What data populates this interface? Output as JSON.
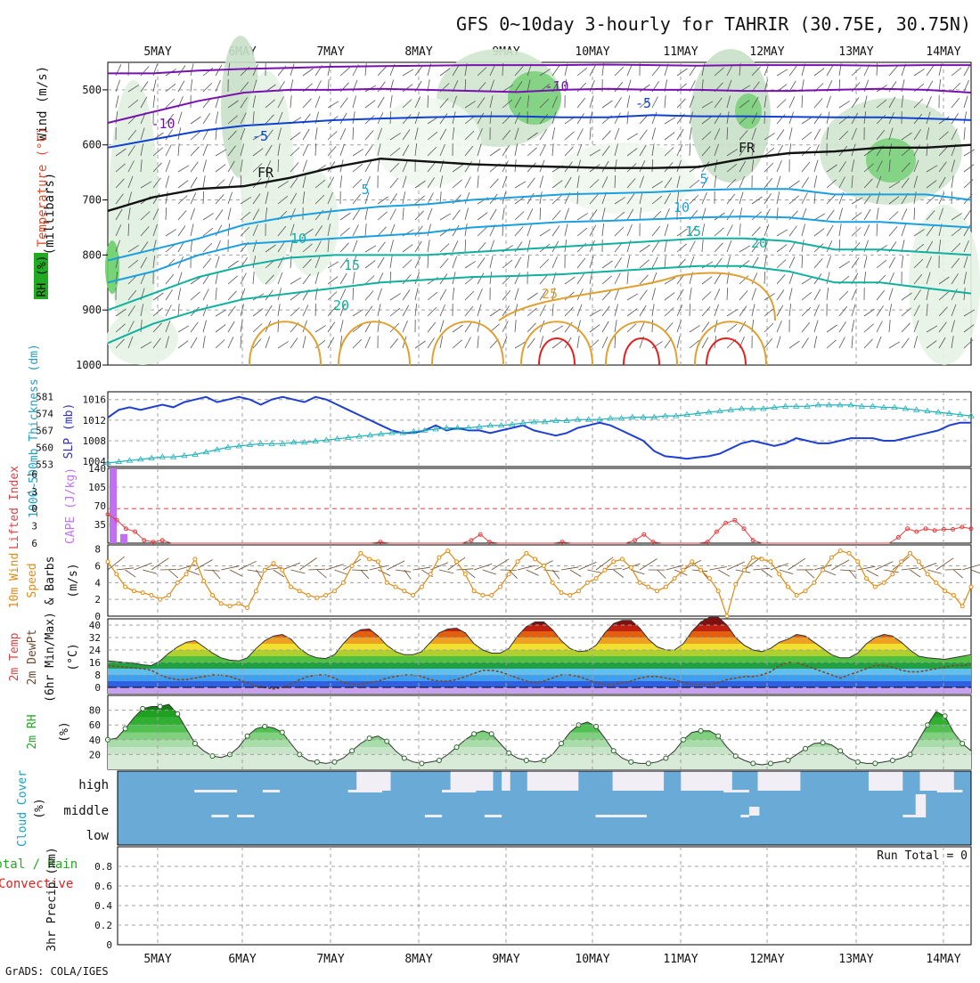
{
  "title": "GFS 0~10day 3-hourly for TAHRIR (30.75E, 30.75N)",
  "credit": "GrADS: COLA/IGES",
  "dates": [
    "5MAY",
    "6MAY",
    "7MAY",
    "8MAY",
    "9MAY",
    "10MAY",
    "11MAY",
    "12MAY",
    "13MAY",
    "14MAY"
  ],
  "colors": {
    "slp": "#1f3fd0",
    "thickness": "#20b0b8",
    "cape": "#c070f0",
    "li": "#e04040",
    "wind10": "#e08a10",
    "barb": "#6a4a2a",
    "rh": "#22aa22",
    "cloud": "#6aaad6",
    "cloud_gap": "#f2eef6",
    "t_purple": "#7a10b0",
    "t_blue": "#1040d0",
    "t_cyan": "#1aa0e0",
    "t_teal": "#10b0a0",
    "t_orange": "#e0a030",
    "t_red": "#e02020"
  },
  "panels": {
    "upper": {
      "y_label": "(millibars)",
      "leg_wind": "Wind (m/s)",
      "leg_temp": "Temperature (°C)",
      "leg_rh": "RH (%)",
      "ticks": [
        "500",
        "600",
        "700",
        "800",
        "900",
        "1000"
      ]
    },
    "slp": {
      "left_label": "1000~500mb Thickness (dm)",
      "right_label": "SLP (mb)",
      "thick_ticks": [
        "581",
        "574",
        "567",
        "560",
        "553"
      ],
      "slp_ticks": [
        "1016",
        "1012",
        "1008",
        "1004"
      ]
    },
    "cape": {
      "left_label": "Lifted Index",
      "right_label": "CAPE (J/kg)",
      "li_ticks": [
        "-6",
        "-3",
        "0",
        "3",
        "6"
      ],
      "cape_ticks": [
        "140",
        "105",
        "70",
        "35"
      ]
    },
    "wind": {
      "label1": "10m Wind",
      "label2": "Speed",
      "label3": "& Barbs",
      "unit": "(m/s)",
      "ticks": [
        "8",
        "6",
        "4",
        "2",
        "0"
      ]
    },
    "temp": {
      "label1": "2m Temp",
      "label2": "2m DewPt",
      "label3": "(6hr Min/Max)",
      "unit": "(°C)",
      "ticks": [
        "40",
        "32",
        "24",
        "16",
        "8",
        "0"
      ]
    },
    "rh": {
      "label": "2m RH",
      "unit": "(%)",
      "ticks": [
        "80",
        "60",
        "40",
        "20"
      ]
    },
    "cloud": {
      "label": "Cloud Cover",
      "unit": "(%)",
      "levels": [
        "high",
        "middle",
        "low"
      ]
    },
    "precip": {
      "label1": "Total / Rain",
      "label2": "Convective",
      "label3": "3hr Precip (mm)",
      "ticks": [
        "0.8",
        "0.6",
        "0.4",
        "0.2",
        "0"
      ],
      "run_total": "Run Total = 0"
    }
  },
  "chart_data": [
    {
      "type": "line",
      "name": "upper_air_isotherms",
      "title": "GFS 0~10day 3-hourly for TAHRIR (30.75E, 30.75N)",
      "ylabel": "(millibars)",
      "ylim": [
        1000,
        450
      ],
      "contour_labels": [
        "-10",
        "-10",
        "-5",
        "-5",
        "FR",
        "FR",
        "5",
        "5",
        "10",
        "10",
        "15",
        "15",
        "20",
        "20",
        "25"
      ],
      "isotherms": [
        {
          "label": "-10",
          "pressure": [
            470,
            470,
            465,
            462,
            460,
            458,
            457,
            456,
            455,
            455,
            455,
            454,
            455,
            456,
            455,
            455,
            455,
            456,
            455,
            455
          ]
        },
        {
          "label": "-10b",
          "pressure": [
            560,
            540,
            520,
            505,
            500,
            500,
            498,
            500,
            502,
            504,
            500,
            498,
            500,
            500,
            502,
            502,
            500,
            498,
            500,
            505
          ]
        },
        {
          "label": "-5",
          "pressure": [
            605,
            590,
            575,
            565,
            560,
            555,
            552,
            550,
            548,
            548,
            550,
            550,
            546,
            548,
            548,
            549,
            550,
            550,
            552,
            555
          ]
        },
        {
          "label": "FR",
          "pressure": [
            720,
            695,
            680,
            675,
            660,
            640,
            625,
            630,
            635,
            638,
            640,
            642,
            642,
            640,
            625,
            615,
            612,
            605,
            605,
            600
          ]
        },
        {
          "label": "5",
          "pressure": [
            810,
            790,
            770,
            745,
            730,
            720,
            712,
            708,
            700,
            695,
            690,
            688,
            686,
            682,
            680,
            680,
            690,
            690,
            690,
            700
          ]
        },
        {
          "label": "10",
          "pressure": [
            850,
            830,
            800,
            780,
            775,
            770,
            765,
            760,
            750,
            745,
            740,
            738,
            735,
            732,
            730,
            732,
            740,
            740,
            745,
            750
          ]
        },
        {
          "label": "15",
          "pressure": [
            900,
            870,
            840,
            820,
            805,
            800,
            800,
            800,
            795,
            790,
            785,
            780,
            775,
            770,
            770,
            775,
            790,
            790,
            795,
            800
          ]
        },
        {
          "label": "20",
          "pressure": [
            960,
            925,
            900,
            880,
            870,
            860,
            850,
            845,
            840,
            838,
            835,
            830,
            825,
            820,
            820,
            830,
            850,
            850,
            860,
            870
          ]
        }
      ]
    },
    {
      "type": "line",
      "name": "slp_thickness",
      "series": [
        {
          "name": "SLP (mb)",
          "values": [
            1012.5,
            1014,
            1014.5,
            1014,
            1014.5,
            1015,
            1014.5,
            1015.5,
            1016,
            1016.5,
            1015.5,
            1016,
            1016.5,
            1016,
            1015,
            1016,
            1016.5,
            1016,
            1015.5,
            1016.5,
            1016,
            1015,
            1014,
            1013,
            1012,
            1011,
            1010,
            1009.5,
            1009.5,
            1010,
            1011,
            1010,
            1010.5,
            1010,
            1010,
            1009.5,
            1010,
            1010.5,
            1011,
            1010,
            1009.5,
            1009,
            1009.5,
            1010.5,
            1011,
            1011.5,
            1011,
            1010,
            1009,
            1008,
            1006,
            1005,
            1004.8,
            1004.5,
            1004.8,
            1005,
            1005.5,
            1006.5,
            1007.5,
            1008,
            1007.5,
            1007,
            1007.5,
            1008.5,
            1008,
            1007.5,
            1007.5,
            1008,
            1008.5,
            1008.5,
            1008.5,
            1008,
            1008,
            1008.5,
            1009,
            1009.5,
            1010,
            1011,
            1011.5,
            1011.5
          ]
        },
        {
          "name": "1000~500mb Thickness (dm)",
          "values": [
            553.5,
            554,
            554.5,
            555,
            555.5,
            556,
            556,
            556.5,
            557,
            558,
            559,
            560,
            560.5,
            561,
            561.5,
            561.5,
            561.5,
            562,
            562,
            562.5,
            563,
            563.5,
            564,
            564.5,
            565,
            565.5,
            566,
            566,
            566.5,
            567,
            567.5,
            568,
            568,
            568,
            568.5,
            569,
            569,
            569.5,
            570,
            570.5,
            570.5,
            571,
            571,
            571.5,
            571.5,
            571.5,
            572,
            572,
            572.5,
            572.5,
            572.5,
            573,
            573,
            573.5,
            574,
            574.5,
            575,
            575.5,
            576,
            576,
            576,
            576.5,
            577,
            577,
            577,
            577.5,
            577.5,
            577.5,
            577.5,
            577,
            577,
            576.5,
            576.5,
            576,
            575.5,
            575,
            574.5,
            574,
            573.5,
            573
          ]
        }
      ]
    },
    {
      "type": "bar",
      "name": "cape_lifted_index",
      "series": [
        {
          "name": "CAPE (J/kg)",
          "values": [
            140,
            17
          ]
        },
        {
          "name": "Lifted Index",
          "values": [
            1,
            2,
            3.5,
            4,
            5.5,
            5.8,
            5.5,
            6,
            6,
            6,
            6,
            6,
            6,
            6,
            6,
            6,
            6,
            6,
            6,
            6,
            6,
            6,
            6,
            6,
            6,
            6,
            6,
            6,
            6,
            6,
            5.8,
            6,
            6,
            6,
            6,
            6,
            6,
            6,
            6,
            6,
            5.5,
            4.5,
            5.8,
            6,
            6,
            6,
            6,
            6,
            6,
            6,
            5.8,
            6,
            6,
            6,
            6,
            6,
            6,
            6,
            5.5,
            4.5,
            5.8,
            6,
            6,
            6,
            6,
            6,
            5.8,
            4,
            2.5,
            2,
            3.5,
            5.5,
            6,
            6,
            6,
            6,
            6,
            6,
            6,
            6,
            6,
            6,
            6,
            6,
            6,
            6,
            6,
            5,
            3.5,
            4,
            3.5,
            3.8,
            3.6,
            3.6,
            3.2,
            3.5
          ]
        }
      ],
      "ylim_li": [
        6,
        -6
      ],
      "ylim_cape": [
        0,
        140
      ]
    },
    {
      "type": "line",
      "name": "10m_wind_speed",
      "ylabel": "(m/s)",
      "ylim": [
        0,
        8
      ],
      "values": [
        6.5,
        5,
        3.5,
        3,
        2.8,
        2.5,
        2,
        2.5,
        4,
        5,
        6.8,
        4.2,
        2.5,
        1.5,
        1.2,
        1.5,
        1,
        3,
        5.5,
        6.3,
        5.5,
        3.5,
        3,
        2.5,
        2.2,
        2.5,
        3,
        4,
        6,
        7.5,
        6.8,
        6.5,
        4,
        3.5,
        3,
        2.5,
        3.5,
        5,
        7,
        7.8,
        6.5,
        5,
        3,
        2.5,
        2.5,
        3.5,
        5,
        6.5,
        7.5,
        6.8,
        6,
        4,
        2.8,
        2.5,
        3,
        4,
        4.5,
        5.5,
        6.5,
        6.8,
        5.8,
        4,
        3.5,
        3,
        3.5,
        4.5,
        5.5,
        6.5,
        5.5,
        4.5,
        3,
        0,
        3.8,
        5.5,
        7,
        6.8,
        6.5,
        5,
        3.5,
        2.5,
        3,
        4,
        5.5,
        7,
        7.8,
        7.5,
        6.5,
        4.5,
        3.5,
        4,
        5,
        6.5,
        7.5,
        6.5,
        5,
        4,
        3,
        2.5,
        1.2,
        3.5
      ]
    },
    {
      "type": "area",
      "name": "2m_temperature",
      "ylabel": "(°C)",
      "ylim": [
        -4,
        44
      ],
      "series": [
        {
          "name": "2m Temp",
          "values": [
            17,
            16.5,
            16,
            15.5,
            14.5,
            14,
            17,
            22,
            26,
            29,
            30,
            26,
            22,
            19,
            17.5,
            17,
            19,
            25,
            30,
            33,
            34,
            31,
            25,
            21,
            19,
            18.5,
            21,
            28,
            34,
            37,
            37.5,
            33,
            27,
            23,
            21,
            21,
            23,
            29,
            35,
            37.5,
            38,
            35,
            28,
            24,
            22,
            22,
            25,
            33,
            39,
            42,
            42,
            37,
            30,
            25,
            23,
            23.5,
            27,
            35,
            41,
            43,
            43,
            38,
            31,
            26,
            24,
            24,
            28,
            36,
            42,
            45,
            45,
            40,
            32,
            27,
            24,
            23,
            25,
            29,
            31,
            34,
            33,
            29,
            25,
            21,
            19,
            19,
            22,
            28,
            32,
            34,
            33,
            29,
            24,
            20,
            19,
            18.5,
            18,
            19,
            20,
            21
          ]
        },
        {
          "name": "2m DewPt",
          "values": [
            14,
            13.5,
            13,
            12.5,
            12,
            11,
            8,
            6,
            5,
            5,
            6,
            7,
            8,
            8,
            7,
            5,
            3,
            1,
            0,
            -1,
            0,
            2,
            5,
            7,
            8,
            8,
            6,
            3,
            2,
            2,
            3,
            4,
            6,
            7,
            8,
            8,
            7,
            5,
            4,
            4,
            5,
            7,
            9,
            11,
            11,
            10,
            8,
            6,
            4,
            3,
            4,
            6,
            8,
            8,
            7,
            5,
            3,
            2,
            2,
            3,
            4,
            6,
            7,
            7,
            6,
            5,
            3,
            2,
            2,
            2,
            3,
            5,
            6,
            7,
            7,
            8,
            10,
            14,
            16,
            16,
            14,
            12,
            10,
            8,
            6,
            8,
            10,
            12,
            14,
            14,
            13,
            11,
            10,
            10,
            11,
            12,
            13,
            14,
            14,
            15
          ]
        }
      ]
    },
    {
      "type": "area",
      "name": "2m_relative_humidity",
      "ylabel": "(%)",
      "ylim": [
        0,
        100
      ],
      "values": [
        40,
        42,
        55,
        70,
        82,
        85,
        85,
        88,
        75,
        55,
        35,
        25,
        18,
        16,
        20,
        30,
        45,
        55,
        58,
        56,
        50,
        35,
        20,
        12,
        10,
        8,
        10,
        15,
        25,
        35,
        42,
        45,
        38,
        25,
        15,
        10,
        8,
        10,
        12,
        20,
        30,
        40,
        48,
        52,
        48,
        35,
        22,
        15,
        12,
        10,
        12,
        20,
        35,
        50,
        60,
        64,
        58,
        42,
        25,
        15,
        10,
        8,
        8,
        10,
        15,
        25,
        40,
        50,
        52,
        52,
        45,
        30,
        18,
        12,
        8,
        6,
        8,
        10,
        12,
        20,
        28,
        35,
        36,
        33,
        25,
        15,
        10,
        8,
        8,
        10,
        12,
        15,
        20,
        40,
        60,
        78,
        72,
        50,
        35,
        25
      ]
    },
    {
      "type": "heatmap",
      "name": "cloud_cover",
      "y": [
        "high",
        "middle",
        "low"
      ],
      "high_gaps": [
        [
          28,
          32
        ],
        [
          39,
          44
        ],
        [
          45,
          46
        ],
        [
          48,
          54
        ],
        [
          58,
          64
        ],
        [
          66,
          72
        ],
        [
          75,
          80
        ],
        [
          88,
          92
        ],
        [
          94,
          98
        ]
      ]
    },
    {
      "type": "bar",
      "name": "3hr_precip",
      "ylabel": "3hr Precip (mm)",
      "ylim": [
        0,
        1
      ],
      "series": [
        {
          "name": "Total / Rain",
          "values": [
            0
          ]
        },
        {
          "name": "Convective",
          "values": [
            0
          ]
        }
      ]
    }
  ]
}
